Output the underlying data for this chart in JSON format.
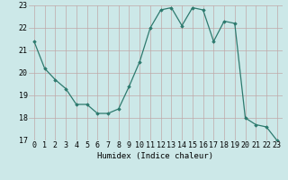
{
  "x": [
    0,
    1,
    2,
    3,
    4,
    5,
    6,
    7,
    8,
    9,
    10,
    11,
    12,
    13,
    14,
    15,
    16,
    17,
    18,
    19,
    20,
    21,
    22,
    23
  ],
  "y": [
    21.4,
    20.2,
    19.7,
    19.3,
    18.6,
    18.6,
    18.2,
    18.2,
    18.4,
    19.4,
    20.5,
    22.0,
    22.8,
    22.9,
    22.1,
    22.9,
    22.8,
    21.4,
    22.3,
    22.2,
    18.0,
    17.7,
    17.6,
    17.0
  ],
  "line_color": "#2d7a6e",
  "marker": "D",
  "marker_size": 1.8,
  "bg_color": "#cce8e8",
  "grid_color": "#c0a8a8",
  "xlabel": "Humidex (Indice chaleur)",
  "xlim": [
    -0.5,
    23.5
  ],
  "ylim": [
    17,
    23
  ],
  "yticks": [
    17,
    18,
    19,
    20,
    21,
    22,
    23
  ],
  "xticks": [
    0,
    1,
    2,
    3,
    4,
    5,
    6,
    7,
    8,
    9,
    10,
    11,
    12,
    13,
    14,
    15,
    16,
    17,
    18,
    19,
    20,
    21,
    22,
    23
  ],
  "label_fontsize": 6.5,
  "tick_fontsize": 6.0
}
